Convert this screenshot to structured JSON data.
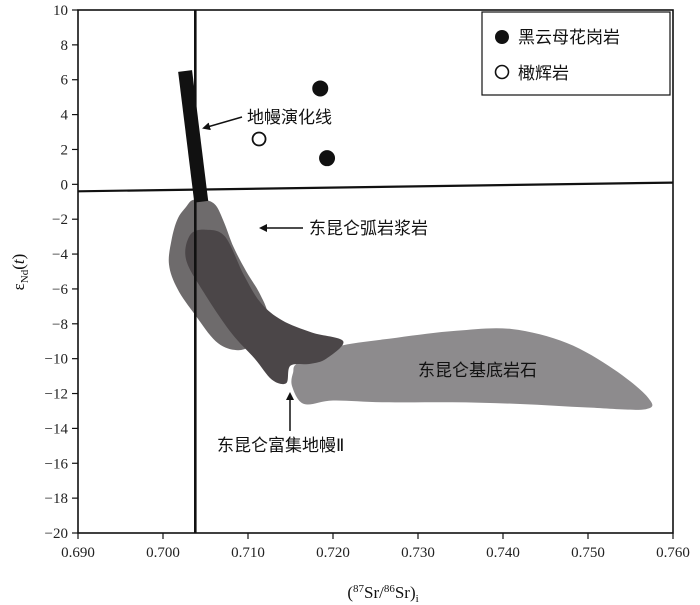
{
  "chart_data": {
    "type": "scatter",
    "xlabel": "(87Sr/86Sr)i",
    "ylabel": "εNd(t)",
    "xlim": [
      0.69,
      0.76
    ],
    "ylim": [
      -20,
      10
    ],
    "x_ticks": [
      "0.690",
      "0.700",
      "0.710",
      "0.720",
      "0.730",
      "0.740",
      "0.750",
      "0.760"
    ],
    "y_ticks": [
      "10",
      "8",
      "6",
      "4",
      "2",
      "0",
      "−2",
      "−4",
      "−6",
      "−8",
      "−10",
      "−12",
      "−14",
      "−16",
      "−18",
      "−20"
    ],
    "y_tick_values": [
      10,
      8,
      6,
      4,
      2,
      0,
      -2,
      -4,
      -6,
      -8,
      -10,
      -12,
      -14,
      -16,
      -18,
      -20
    ],
    "grid": false,
    "legend_position": "top-right",
    "series": [
      {
        "name": "黑云母花岗岩",
        "marker": "filled-circle",
        "color": "#111111",
        "points": [
          [
            0.7185,
            5.5
          ],
          [
            0.7193,
            1.5
          ]
        ]
      },
      {
        "name": "橄辉岩",
        "marker": "open-circle",
        "color": "#111111",
        "points": [
          [
            0.7113,
            2.6
          ]
        ]
      }
    ],
    "reference_lines": {
      "vertical_x": 0.7038,
      "horizontal": [
        [
          0.69,
          -0.4
        ],
        [
          0.76,
          0.1
        ]
      ]
    },
    "fields": [
      {
        "label": "东昆仑弧岩浆岩",
        "color": "#6e6b6c",
        "outline": [
          [
            0.7027,
            -1.3
          ],
          [
            0.7035,
            -0.9
          ],
          [
            0.705,
            -0.9
          ],
          [
            0.7062,
            -1.2
          ],
          [
            0.7072,
            -2.2
          ],
          [
            0.7083,
            -3.6
          ],
          [
            0.7098,
            -5.0
          ],
          [
            0.7113,
            -6.2
          ],
          [
            0.7123,
            -7.4
          ],
          [
            0.7118,
            -8.4
          ],
          [
            0.7102,
            -9.3
          ],
          [
            0.7084,
            -9.5
          ],
          [
            0.7062,
            -9.0
          ],
          [
            0.7038,
            -7.5
          ],
          [
            0.7017,
            -6.0
          ],
          [
            0.7007,
            -4.6
          ],
          [
            0.701,
            -3.2
          ],
          [
            0.7017,
            -2.0
          ]
        ]
      },
      {
        "label": "东昆仑富集地幔Ⅱ",
        "color": "#4b4648",
        "outline": [
          [
            0.7032,
            -2.9
          ],
          [
            0.705,
            -2.6
          ],
          [
            0.7073,
            -3.0
          ],
          [
            0.7095,
            -5.2
          ],
          [
            0.7115,
            -6.8
          ],
          [
            0.714,
            -7.8
          ],
          [
            0.7175,
            -8.5
          ],
          [
            0.7212,
            -9.0
          ],
          [
            0.7192,
            -10.0
          ],
          [
            0.7173,
            -10.3
          ],
          [
            0.715,
            -10.4
          ],
          [
            0.7145,
            -11.4
          ],
          [
            0.7128,
            -11.2
          ],
          [
            0.7108,
            -10.0
          ],
          [
            0.708,
            -8.5
          ],
          [
            0.7048,
            -6.2
          ],
          [
            0.7027,
            -4.3
          ]
        ]
      },
      {
        "label": "东昆仑基底岩石",
        "color": "#8d8b8d",
        "outline": [
          [
            0.716,
            -10.2
          ],
          [
            0.7205,
            -9.3
          ],
          [
            0.7275,
            -8.8
          ],
          [
            0.7345,
            -8.4
          ],
          [
            0.741,
            -8.3
          ],
          [
            0.7475,
            -9.1
          ],
          [
            0.753,
            -10.6
          ],
          [
            0.757,
            -12.2
          ],
          [
            0.7568,
            -12.9
          ],
          [
            0.75,
            -12.8
          ],
          [
            0.742,
            -12.6
          ],
          [
            0.734,
            -12.5
          ],
          [
            0.726,
            -12.5
          ],
          [
            0.72,
            -12.4
          ],
          [
            0.7166,
            -12.6
          ],
          [
            0.7152,
            -11.6
          ],
          [
            0.7153,
            -10.8
          ]
        ]
      }
    ],
    "mantle_evolution_band": {
      "label": "地幔演化线",
      "bottom": [
        0.7045,
        -1.0
      ],
      "top": [
        0.7026,
        6.5
      ]
    },
    "annotations": {
      "mantle_line": "地幔演化线",
      "arc_magma": "东昆仑弧岩浆岩",
      "basement": "东昆仑基底岩石",
      "enriched_mantle": "东昆仑富集地幔Ⅱ"
    }
  }
}
